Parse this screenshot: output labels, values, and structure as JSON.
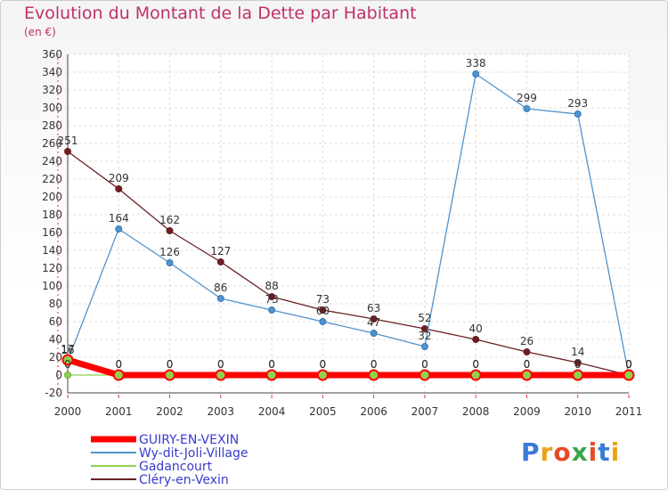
{
  "header": {
    "title": "Evolution du Montant de la Dette par Habitant",
    "unit": "(en €)"
  },
  "logo": {
    "text": "Proxiti"
  },
  "chart_data": {
    "type": "line",
    "title": "Evolution du Montant de la Dette par Habitant",
    "ylabel": "(en €)",
    "xlabel": "",
    "ylim": [
      -20,
      360
    ],
    "y_ticks": [
      -20,
      0,
      20,
      40,
      60,
      80,
      100,
      120,
      140,
      160,
      180,
      200,
      220,
      240,
      260,
      280,
      300,
      320,
      340,
      360
    ],
    "categories": [
      "2000",
      "2001",
      "2002",
      "2003",
      "2004",
      "2005",
      "2006",
      "2007",
      "2008",
      "2009",
      "2010",
      "2011"
    ],
    "grid": true,
    "legend_position": "bottom-left",
    "series": [
      {
        "name": "Clery-en-Vexin",
        "color": "#6b1f23",
        "values": [
          251,
          209,
          162,
          127,
          88,
          73,
          63,
          52,
          40,
          26,
          14,
          0
        ]
      },
      {
        "name": "Wy-dit-Joli-Village",
        "color": "#4f93cf",
        "values": [
          16,
          164,
          126,
          86,
          73,
          60,
          47,
          32,
          338,
          299,
          293,
          0
        ]
      },
      {
        "name": "Gadancourt",
        "color": "#8fd14f",
        "values": [
          0,
          0,
          0,
          0,
          0,
          0,
          0,
          0,
          0,
          0,
          0,
          0
        ]
      },
      {
        "name": "GUIRY-EN-VEXIN",
        "color": "#ff0000",
        "values": [
          17,
          0,
          0,
          0,
          0,
          0,
          0,
          0,
          0,
          0,
          0,
          0
        ]
      }
    ],
    "legend": [
      "GUIRY-EN-VEXIN",
      "Wy-dit-Joli-Village",
      "Gadancourt",
      "Cléry-en-Vexin"
    ]
  }
}
